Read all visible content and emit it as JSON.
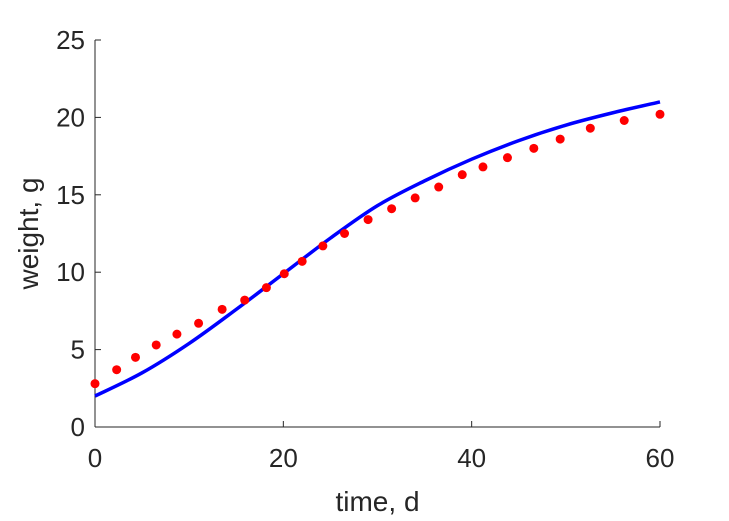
{
  "chart_data": {
    "type": "line",
    "title": "",
    "xlabel": "time, d",
    "ylabel": "weight, g",
    "xlim": [
      0,
      60
    ],
    "ylim": [
      0,
      25
    ],
    "xticks": [
      0,
      20,
      40,
      60
    ],
    "yticks": [
      0,
      5,
      10,
      15,
      20,
      25
    ],
    "grid": false,
    "legend": "none",
    "series": [
      {
        "style": "line",
        "color": "#0000FF",
        "x": [
          0,
          5,
          10,
          15,
          20,
          25,
          30,
          35,
          40,
          45,
          50,
          55,
          60
        ],
        "y": [
          2.0,
          3.5,
          5.4,
          7.6,
          9.9,
          12.2,
          14.3,
          15.9,
          17.3,
          18.5,
          19.5,
          20.3,
          21.0
        ]
      },
      {
        "style": "markers",
        "color": "#FF0000",
        "x": [
          0,
          2.3,
          4.3,
          6.5,
          8.7,
          11,
          13.5,
          15.9,
          18.2,
          20.1,
          22.0,
          24.2,
          26.5,
          29.0,
          31.5,
          34.0,
          36.5,
          39.0,
          41.2,
          43.8,
          46.6,
          49.4,
          52.6,
          56.2,
          60.0
        ],
        "y": [
          2.8,
          3.7,
          4.5,
          5.3,
          6.0,
          6.7,
          7.6,
          8.2,
          9.0,
          9.9,
          10.7,
          11.7,
          12.5,
          13.4,
          14.1,
          14.8,
          15.5,
          16.3,
          16.8,
          17.4,
          18.0,
          18.6,
          19.3,
          19.8,
          20.2
        ]
      }
    ]
  }
}
